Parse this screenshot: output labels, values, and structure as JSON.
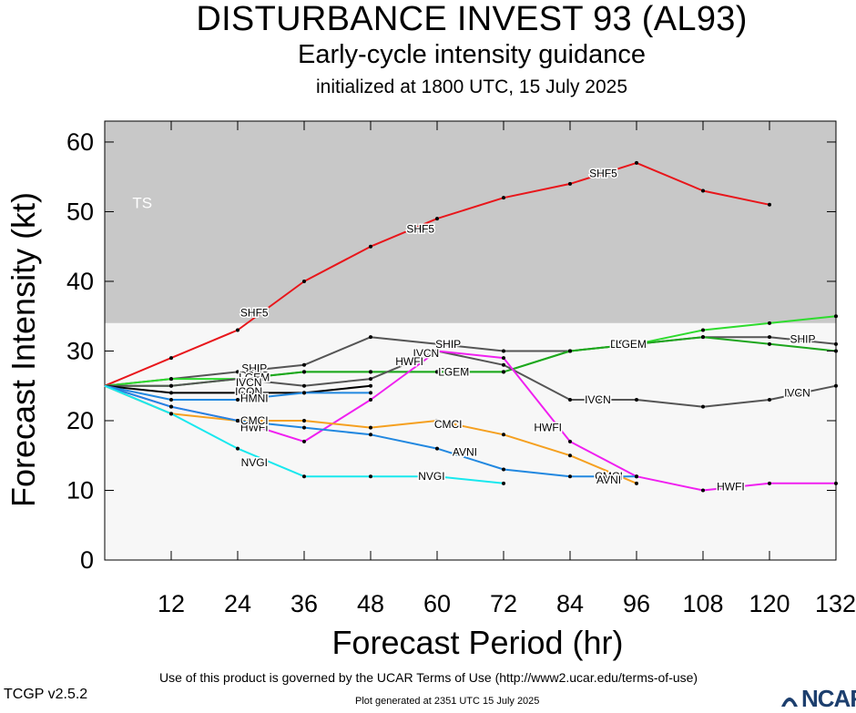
{
  "titles": {
    "title": "DISTURBANCE INVEST 93 (AL93)",
    "subtitle": "Early-cycle intensity guidance",
    "initialized": "initialized at 1800 UTC, 15 July 2025"
  },
  "footer": {
    "terms": "Use of this product is governed by the UCAR Terms of Use (http://www2.ucar.edu/terms-of-use)",
    "version": "TCGP v2.5.2",
    "generated": "Plot generated at 2351 UTC   15 July 2025",
    "logo": "NCAR"
  },
  "chart_data": {
    "type": "line",
    "xlabel": "Forecast Period (hr)",
    "ylabel": "Forecast Intensity (kt)",
    "xlim": [
      0,
      132
    ],
    "ylim": [
      0,
      63
    ],
    "xticks": [
      12,
      24,
      36,
      48,
      60,
      72,
      84,
      96,
      108,
      120,
      132
    ],
    "yticks": [
      0,
      10,
      20,
      30,
      40,
      50,
      60
    ],
    "bands": [
      {
        "label": "TS",
        "from": 34,
        "to": 63,
        "color": "#c8c8c8"
      },
      {
        "label": "",
        "from": 0,
        "to": 34,
        "color": "#f7f7f7"
      }
    ],
    "series": [
      {
        "name": "SHF5",
        "color": "#e8161b",
        "points": [
          [
            0,
            25
          ],
          [
            12,
            29
          ],
          [
            24,
            33
          ],
          [
            36,
            40
          ],
          [
            48,
            45
          ],
          [
            60,
            49
          ],
          [
            72,
            52
          ],
          [
            84,
            54
          ],
          [
            96,
            57
          ],
          [
            108,
            53
          ],
          [
            120,
            51
          ]
        ],
        "labels": [
          [
            27,
            35.5
          ],
          [
            57,
            47.5
          ],
          [
            90,
            55.5
          ]
        ]
      },
      {
        "name": "SHIP",
        "color": "#555555",
        "points": [
          [
            0,
            25
          ],
          [
            12,
            26
          ],
          [
            24,
            27
          ],
          [
            36,
            28
          ],
          [
            48,
            32
          ],
          [
            60,
            31
          ],
          [
            72,
            30
          ],
          [
            84,
            30
          ],
          [
            96,
            31
          ],
          [
            108,
            32
          ],
          [
            120,
            32
          ],
          [
            132,
            31
          ]
        ],
        "labels": [
          [
            27,
            27.5
          ],
          [
            62,
            31
          ],
          [
            126,
            31.7
          ]
        ]
      },
      {
        "name": "DSHP",
        "color": "#2edb2e",
        "points": [
          [
            0,
            25
          ],
          [
            12,
            26
          ],
          [
            24,
            26
          ],
          [
            36,
            27
          ],
          [
            48,
            27
          ],
          [
            60,
            27
          ],
          [
            72,
            27
          ],
          [
            84,
            30
          ],
          [
            96,
            31
          ],
          [
            108,
            33
          ],
          [
            120,
            34
          ],
          [
            132,
            35
          ]
        ],
        "labels": [
          [
            27,
            26.5
          ],
          [
            63,
            27
          ],
          [
            94,
            31
          ]
        ]
      },
      {
        "name": "LGEM",
        "color": "#1ea61e",
        "points": [
          [
            0,
            25
          ],
          [
            12,
            25
          ],
          [
            24,
            26
          ],
          [
            36,
            27
          ],
          [
            48,
            27
          ],
          [
            60,
            27
          ],
          [
            72,
            27
          ],
          [
            84,
            30
          ],
          [
            96,
            31
          ],
          [
            108,
            32
          ],
          [
            120,
            31
          ],
          [
            132,
            30
          ]
        ],
        "labels": [
          [
            27,
            26.2
          ],
          [
            63,
            27
          ],
          [
            95,
            31
          ]
        ]
      },
      {
        "name": "IVCN",
        "color": "#555555",
        "points": [
          [
            0,
            25
          ],
          [
            12,
            25
          ],
          [
            24,
            26
          ],
          [
            36,
            25
          ],
          [
            48,
            26
          ],
          [
            60,
            30
          ],
          [
            72,
            28
          ],
          [
            84,
            23
          ],
          [
            96,
            23
          ],
          [
            108,
            22
          ],
          [
            120,
            23
          ],
          [
            132,
            25
          ]
        ],
        "labels": [
          [
            26,
            25.5
          ],
          [
            58,
            29.7
          ],
          [
            89,
            23
          ],
          [
            125,
            24
          ]
        ]
      },
      {
        "name": "ICON",
        "color": "#000000",
        "points": [
          [
            0,
            25
          ],
          [
            12,
            24
          ],
          [
            24,
            24
          ],
          [
            36,
            24
          ],
          [
            48,
            25
          ]
        ],
        "labels": [
          [
            26,
            24.2
          ]
        ]
      },
      {
        "name": "HMNI",
        "color": "#2288e0",
        "points": [
          [
            0,
            25
          ],
          [
            12,
            23
          ],
          [
            24,
            23
          ],
          [
            36,
            24
          ],
          [
            48,
            24
          ]
        ],
        "labels": [
          [
            27,
            23.2
          ]
        ]
      },
      {
        "name": "HWFI",
        "color": "#f020f0",
        "points": [
          [
            0,
            25
          ],
          [
            12,
            22
          ],
          [
            24,
            20
          ],
          [
            36,
            17
          ],
          [
            48,
            23
          ],
          [
            60,
            30
          ],
          [
            72,
            29
          ],
          [
            84,
            17
          ],
          [
            96,
            12
          ],
          [
            108,
            10
          ],
          [
            120,
            11
          ],
          [
            132,
            11
          ]
        ],
        "labels": [
          [
            27,
            19
          ],
          [
            55,
            28.5
          ],
          [
            80,
            19
          ],
          [
            113,
            10.5
          ]
        ]
      },
      {
        "name": "CMCI",
        "color": "#f5a020",
        "points": [
          [
            0,
            25
          ],
          [
            12,
            21
          ],
          [
            24,
            20
          ],
          [
            36,
            20
          ],
          [
            48,
            19
          ],
          [
            60,
            20
          ],
          [
            72,
            18
          ],
          [
            84,
            15
          ],
          [
            96,
            11
          ]
        ],
        "labels": [
          [
            27,
            20
          ],
          [
            62,
            19.5
          ],
          [
            91,
            12
          ]
        ]
      },
      {
        "name": "AVNI",
        "color": "#2288e0",
        "points": [
          [
            0,
            25
          ],
          [
            12,
            22
          ],
          [
            24,
            20
          ],
          [
            36,
            19
          ],
          [
            48,
            18
          ],
          [
            60,
            16
          ],
          [
            72,
            13
          ],
          [
            84,
            12
          ],
          [
            96,
            12
          ]
        ],
        "labels": [
          [
            65,
            15.5
          ],
          [
            91,
            11.5
          ]
        ]
      },
      {
        "name": "NVGI",
        "color": "#18e8ee",
        "points": [
          [
            0,
            25
          ],
          [
            12,
            21
          ],
          [
            24,
            16
          ],
          [
            36,
            12
          ],
          [
            48,
            12
          ],
          [
            60,
            12
          ],
          [
            72,
            11
          ]
        ],
        "labels": [
          [
            27,
            14
          ],
          [
            59,
            12
          ]
        ]
      }
    ]
  }
}
